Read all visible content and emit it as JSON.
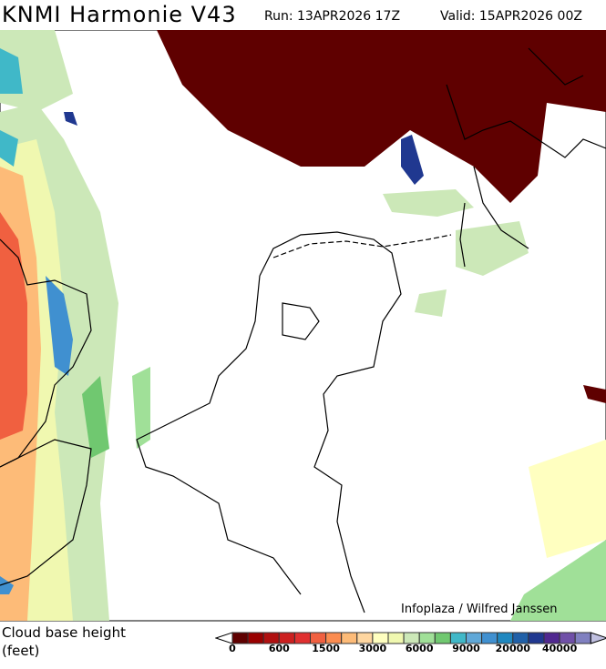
{
  "header": {
    "title": "KNMI Harmonie V43",
    "run": "Run: 13APR2026 17Z",
    "valid": "Valid: 15APR2026 00Z"
  },
  "credit": "Infoplaza / Wilfred Janssen",
  "legend": {
    "label_line1": "Cloud base height",
    "label_line2": "(feet)",
    "ticks": [
      "0",
      "600",
      "1500",
      "3000",
      "6000",
      "9000",
      "20000",
      "40000"
    ],
    "colors": [
      "#5f0000",
      "#990000",
      "#b01010",
      "#cc2020",
      "#e03030",
      "#f06040",
      "#fb8c50",
      "#fdbb78",
      "#fed6a0",
      "#ffffc0",
      "#f0f8b0",
      "#cce8b8",
      "#a0e098",
      "#70c870",
      "#40b8c8",
      "#60a8d8",
      "#4090d0",
      "#2088c0",
      "#2060a8",
      "#203890",
      "#502890",
      "#7050a8",
      "#8080c0"
    ],
    "under_color": "#ffffff",
    "over_color": "#c0c0e0"
  }
}
